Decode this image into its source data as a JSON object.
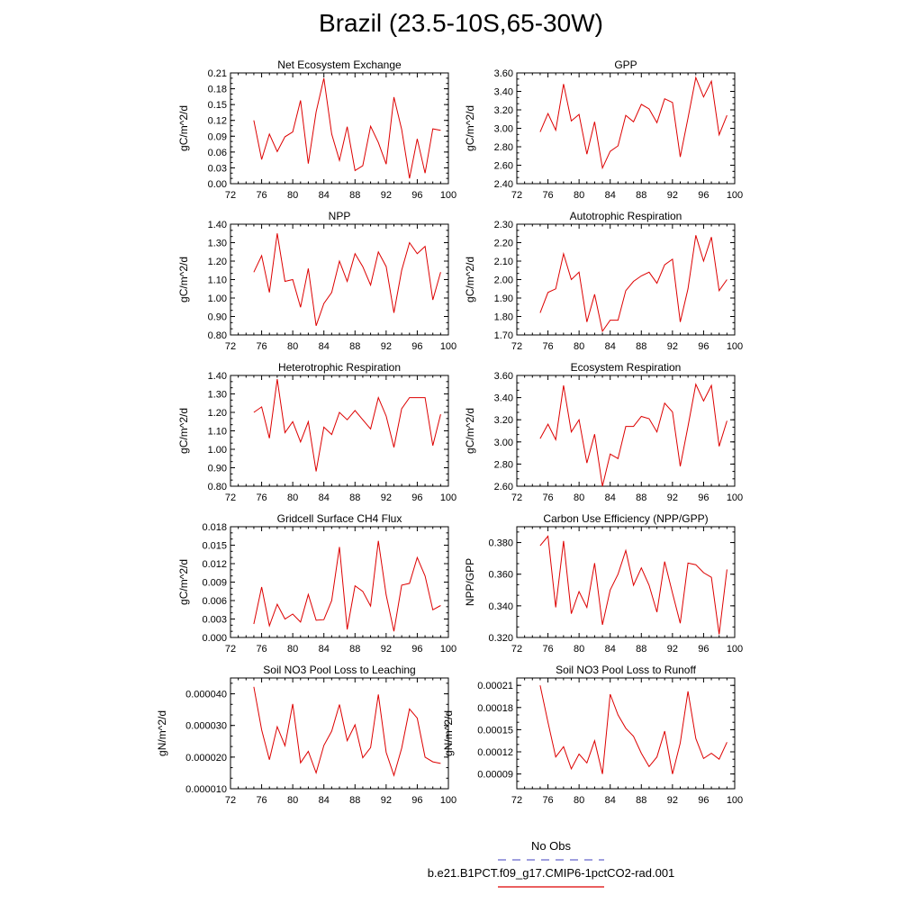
{
  "figure": {
    "title": "Brazil (23.5-10S,65-30W)",
    "legend": [
      {
        "label": "No Obs",
        "color": "#6666cc",
        "dash": true
      },
      {
        "label": "b.e21.B1PCT.f09_g17.CMIP6-1pctCO2-rad.001",
        "color": "#dd0000",
        "dash": false
      }
    ]
  },
  "chart_data": [
    {
      "type": "line",
      "title": "Net Ecosystem Exchange",
      "ylabel": "gC/m^2/d",
      "xlim": [
        72,
        100
      ],
      "xticks": [
        72,
        76,
        80,
        84,
        88,
        92,
        96,
        100
      ],
      "ylim": [
        0,
        0.21
      ],
      "yticks": [
        0.0,
        0.03,
        0.06,
        0.09,
        0.12,
        0.15,
        0.18,
        0.21
      ],
      "ydecimals": 2,
      "x": [
        75,
        76,
        77,
        78,
        79,
        80,
        81,
        82,
        83,
        84,
        85,
        86,
        87,
        88,
        89,
        90,
        91,
        92,
        93,
        94,
        95,
        96,
        97,
        98,
        99
      ],
      "values": [
        0.12,
        0.046,
        0.094,
        0.061,
        0.089,
        0.098,
        0.158,
        0.038,
        0.136,
        0.2,
        0.094,
        0.044,
        0.108,
        0.025,
        0.034,
        0.109,
        0.078,
        0.037,
        0.164,
        0.103,
        0.01,
        0.085,
        0.02,
        0.104,
        0.101
      ]
    },
    {
      "type": "line",
      "title": "GPP",
      "ylabel": "gC/m^2/d",
      "xlim": [
        72,
        100
      ],
      "xticks": [
        72,
        76,
        80,
        84,
        88,
        92,
        96,
        100
      ],
      "ylim": [
        2.4,
        3.6
      ],
      "yticks": [
        2.4,
        2.6,
        2.8,
        3.0,
        3.2,
        3.4,
        3.6
      ],
      "ydecimals": 2,
      "x": [
        75,
        76,
        77,
        78,
        79,
        80,
        81,
        82,
        83,
        84,
        85,
        86,
        87,
        88,
        89,
        90,
        91,
        92,
        93,
        94,
        95,
        96,
        97,
        98,
        99
      ],
      "values": [
        2.96,
        3.16,
        2.98,
        3.48,
        3.08,
        3.15,
        2.72,
        3.07,
        2.57,
        2.75,
        2.81,
        3.14,
        3.07,
        3.26,
        3.21,
        3.06,
        3.32,
        3.28,
        2.69,
        3.11,
        3.55,
        3.34,
        3.51,
        2.93,
        3.14
      ]
    },
    {
      "type": "line",
      "title": "NPP",
      "ylabel": "gC/m^2/d",
      "xlim": [
        72,
        100
      ],
      "xticks": [
        72,
        76,
        80,
        84,
        88,
        92,
        96,
        100
      ],
      "ylim": [
        0.8,
        1.4
      ],
      "yticks": [
        0.8,
        0.9,
        1.0,
        1.1,
        1.2,
        1.3,
        1.4
      ],
      "ydecimals": 2,
      "x": [
        75,
        76,
        77,
        78,
        79,
        80,
        81,
        82,
        83,
        84,
        85,
        86,
        87,
        88,
        89,
        90,
        91,
        92,
        93,
        94,
        95,
        96,
        97,
        98,
        99
      ],
      "values": [
        1.14,
        1.23,
        1.03,
        1.35,
        1.09,
        1.1,
        0.95,
        1.16,
        0.85,
        0.97,
        1.03,
        1.2,
        1.09,
        1.24,
        1.17,
        1.07,
        1.25,
        1.17,
        0.92,
        1.15,
        1.3,
        1.24,
        1.28,
        0.99,
        1.14
      ]
    },
    {
      "type": "line",
      "title": "Autotrophic Respiration",
      "ylabel": "gC/m^2/d",
      "xlim": [
        72,
        100
      ],
      "xticks": [
        72,
        76,
        80,
        84,
        88,
        92,
        96,
        100
      ],
      "ylim": [
        1.7,
        2.3
      ],
      "yticks": [
        1.7,
        1.8,
        1.9,
        2.0,
        2.1,
        2.2,
        2.3
      ],
      "ydecimals": 2,
      "x": [
        75,
        76,
        77,
        78,
        79,
        80,
        81,
        82,
        83,
        84,
        85,
        86,
        87,
        88,
        89,
        90,
        91,
        92,
        93,
        94,
        95,
        96,
        97,
        98,
        99
      ],
      "values": [
        1.82,
        1.93,
        1.95,
        2.14,
        2.0,
        2.04,
        1.77,
        1.92,
        1.72,
        1.78,
        1.78,
        1.94,
        1.99,
        2.02,
        2.04,
        1.98,
        2.08,
        2.11,
        1.77,
        1.95,
        2.24,
        2.1,
        2.23,
        1.94,
        2.0
      ]
    },
    {
      "type": "line",
      "title": "Heterotrophic Respiration",
      "ylabel": "gC/m^2/d",
      "xlim": [
        72,
        100
      ],
      "xticks": [
        72,
        76,
        80,
        84,
        88,
        92,
        96,
        100
      ],
      "ylim": [
        0.8,
        1.4
      ],
      "yticks": [
        0.8,
        0.9,
        1.0,
        1.1,
        1.2,
        1.3,
        1.4
      ],
      "ydecimals": 2,
      "x": [
        75,
        76,
        77,
        78,
        79,
        80,
        81,
        82,
        83,
        84,
        85,
        86,
        87,
        88,
        89,
        90,
        91,
        92,
        93,
        94,
        95,
        96,
        97,
        98,
        99
      ],
      "values": [
        1.2,
        1.23,
        1.06,
        1.38,
        1.09,
        1.15,
        1.04,
        1.15,
        0.88,
        1.12,
        1.08,
        1.2,
        1.16,
        1.21,
        1.16,
        1.11,
        1.28,
        1.18,
        1.01,
        1.22,
        1.28,
        1.28,
        1.28,
        1.02,
        1.19
      ]
    },
    {
      "type": "line",
      "title": "Ecosystem Respiration",
      "ylabel": "gC/m^2/d",
      "xlim": [
        72,
        100
      ],
      "xticks": [
        72,
        76,
        80,
        84,
        88,
        92,
        96,
        100
      ],
      "ylim": [
        2.6,
        3.6
      ],
      "yticks": [
        2.6,
        2.8,
        3.0,
        3.2,
        3.4,
        3.6
      ],
      "ydecimals": 2,
      "x": [
        75,
        76,
        77,
        78,
        79,
        80,
        81,
        82,
        83,
        84,
        85,
        86,
        87,
        88,
        89,
        90,
        91,
        92,
        93,
        94,
        95,
        96,
        97,
        98,
        99
      ],
      "values": [
        3.03,
        3.16,
        3.02,
        3.51,
        3.09,
        3.2,
        2.81,
        3.07,
        2.6,
        2.89,
        2.85,
        3.14,
        3.14,
        3.23,
        3.21,
        3.09,
        3.35,
        3.27,
        2.78,
        3.14,
        3.52,
        3.37,
        3.51,
        2.96,
        3.19
      ]
    },
    {
      "type": "line",
      "title": "Gridcell Surface CH4 Flux",
      "ylabel": "gC/m^2/d",
      "xlim": [
        72,
        100
      ],
      "xticks": [
        72,
        76,
        80,
        84,
        88,
        92,
        96,
        100
      ],
      "ylim": [
        0,
        0.018
      ],
      "yticks": [
        0.0,
        0.003,
        0.006,
        0.009,
        0.012,
        0.015,
        0.018
      ],
      "ydecimals": 3,
      "x": [
        75,
        76,
        77,
        78,
        79,
        80,
        81,
        82,
        83,
        84,
        85,
        86,
        87,
        88,
        89,
        90,
        91,
        92,
        93,
        94,
        95,
        96,
        97,
        98,
        99
      ],
      "values": [
        0.0022,
        0.0082,
        0.0019,
        0.0054,
        0.003,
        0.0038,
        0.0025,
        0.007,
        0.0028,
        0.0029,
        0.006,
        0.0147,
        0.0013,
        0.0084,
        0.0075,
        0.0051,
        0.0157,
        0.0069,
        0.001,
        0.0085,
        0.0088,
        0.013,
        0.01,
        0.0045,
        0.0052
      ]
    },
    {
      "type": "line",
      "title": "Carbon Use Efficiency (NPP/GPP)",
      "ylabel": "NPP/GPP",
      "xlim": [
        72,
        100
      ],
      "xticks": [
        72,
        76,
        80,
        84,
        88,
        92,
        96,
        100
      ],
      "ylim": [
        0.32,
        0.39
      ],
      "yticks": [
        0.32,
        0.34,
        0.36,
        0.38
      ],
      "ydecimals": 3,
      "x": [
        75,
        76,
        77,
        78,
        79,
        80,
        81,
        82,
        83,
        84,
        85,
        86,
        87,
        88,
        89,
        90,
        91,
        92,
        93,
        94,
        95,
        96,
        97,
        98,
        99
      ],
      "values": [
        0.378,
        0.384,
        0.339,
        0.381,
        0.335,
        0.349,
        0.339,
        0.367,
        0.328,
        0.35,
        0.36,
        0.375,
        0.353,
        0.364,
        0.353,
        0.336,
        0.368,
        0.348,
        0.329,
        0.367,
        0.366,
        0.361,
        0.358,
        0.322,
        0.363
      ]
    },
    {
      "type": "line",
      "title": "Soil NO3 Pool Loss to Leaching",
      "ylabel": "gN/m^2/d",
      "xlim": [
        72,
        100
      ],
      "xticks": [
        72,
        76,
        80,
        84,
        88,
        92,
        96,
        100
      ],
      "ylim": [
        1e-05,
        4.5e-05
      ],
      "yticks": [
        1e-05,
        2e-05,
        3e-05,
        4e-05
      ],
      "ydecimals": 6,
      "x": [
        75,
        76,
        77,
        78,
        79,
        80,
        81,
        82,
        83,
        84,
        85,
        86,
        87,
        88,
        89,
        90,
        91,
        92,
        93,
        94,
        95,
        96,
        97,
        98,
        99
      ],
      "values": [
        4.22e-05,
        2.86e-05,
        1.92e-05,
        2.96e-05,
        2.36e-05,
        3.68e-05,
        1.82e-05,
        2.18e-05,
        1.5e-05,
        2.37e-05,
        2.82e-05,
        3.66e-05,
        2.52e-05,
        3.02e-05,
        1.98e-05,
        2.3e-05,
        3.98e-05,
        2.15e-05,
        1.42e-05,
        2.28e-05,
        3.52e-05,
        3.23e-05,
        2e-05,
        1.85e-05,
        1.8e-05
      ]
    },
    {
      "type": "line",
      "title": "Soil NO3 Pool Loss to Runoff",
      "ylabel": "gN/m^2/d",
      "xlim": [
        72,
        100
      ],
      "xticks": [
        72,
        76,
        80,
        84,
        88,
        92,
        96,
        100
      ],
      "ylim": [
        7e-05,
        0.00022
      ],
      "yticks": [
        9e-05,
        0.00012,
        0.00015,
        0.00018,
        0.00021
      ],
      "ydecimals": 5,
      "x": [
        75,
        76,
        77,
        78,
        79,
        80,
        81,
        82,
        83,
        84,
        85,
        86,
        87,
        88,
        89,
        90,
        91,
        92,
        93,
        94,
        95,
        96,
        97,
        98,
        99
      ],
      "values": [
        0.00021,
        0.00016,
        0.000113,
        0.000127,
        9.7e-05,
        0.000117,
        0.000105,
        0.000135,
        9e-05,
        0.000198,
        0.00017,
        0.000152,
        0.000141,
        0.000118,
        0.0001,
        0.000113,
        0.000148,
        9e-05,
        0.000132,
        0.000202,
        0.000138,
        0.000111,
        0.000118,
        0.00011,
        0.000133
      ]
    }
  ]
}
